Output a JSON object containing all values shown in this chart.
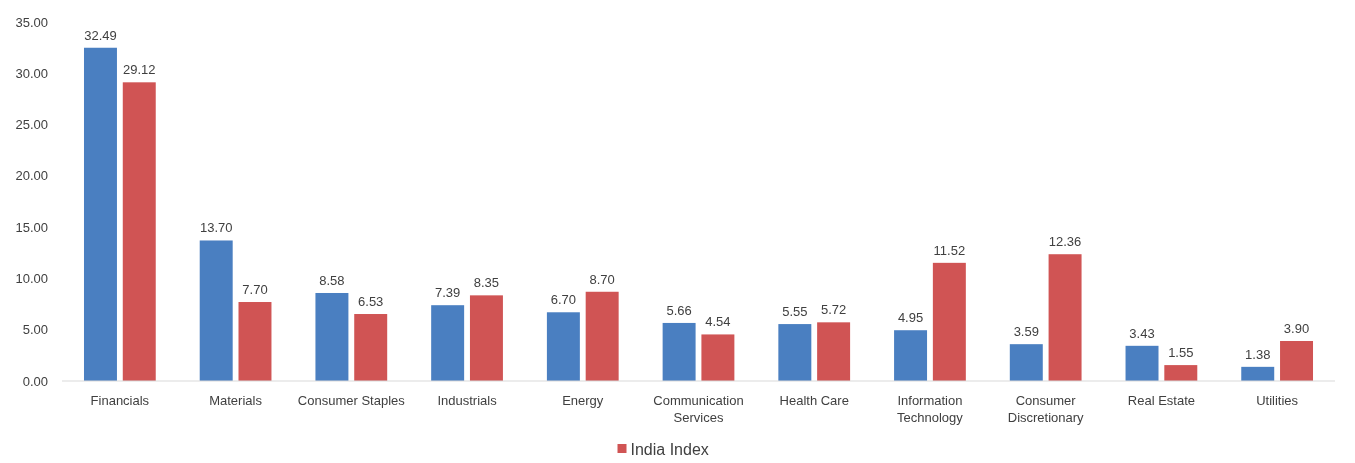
{
  "chart_data": {
    "type": "bar",
    "categories": [
      "Financials",
      "Materials",
      "Consumer Staples",
      "Industrials",
      "Energy",
      "Communication Services",
      "Health Care",
      "Information Technology",
      "Consumer Discretionary",
      "Real Estate",
      "Utilities"
    ],
    "series": [
      {
        "color": "#4a7fc1",
        "values": [
          32.49,
          13.7,
          8.58,
          7.39,
          6.7,
          5.66,
          5.55,
          4.95,
          3.59,
          3.43,
          1.38
        ]
      },
      {
        "name": "India Index",
        "color": "#d05454",
        "values": [
          29.12,
          7.7,
          6.53,
          8.35,
          8.7,
          4.54,
          5.72,
          11.52,
          12.36,
          1.55,
          3.9
        ]
      }
    ],
    "ylim": [
      0,
      35
    ],
    "yticks": [
      {
        "value": 0,
        "label": "0.00"
      },
      {
        "value": 5,
        "label": "5.00"
      },
      {
        "value": 10,
        "label": "10.00"
      },
      {
        "value": 15,
        "label": "15.00"
      },
      {
        "value": 20,
        "label": "20.00"
      },
      {
        "value": 25,
        "label": "25.00"
      },
      {
        "value": 30,
        "label": "30.00"
      },
      {
        "value": 35,
        "label": "35.00"
      }
    ],
    "value_labels": [
      [
        "32.49",
        "13.70",
        "8.58",
        "7.39",
        "6.70",
        "5.66",
        "5.55",
        "4.95",
        "3.59",
        "3.43",
        "1.38"
      ],
      [
        "29.12",
        "7.70",
        "6.53",
        "8.35",
        "8.70",
        "4.54",
        "5.72",
        "11.52",
        "12.36",
        "1.55",
        "3.90"
      ]
    ],
    "grid": false,
    "legend": "bottom"
  }
}
